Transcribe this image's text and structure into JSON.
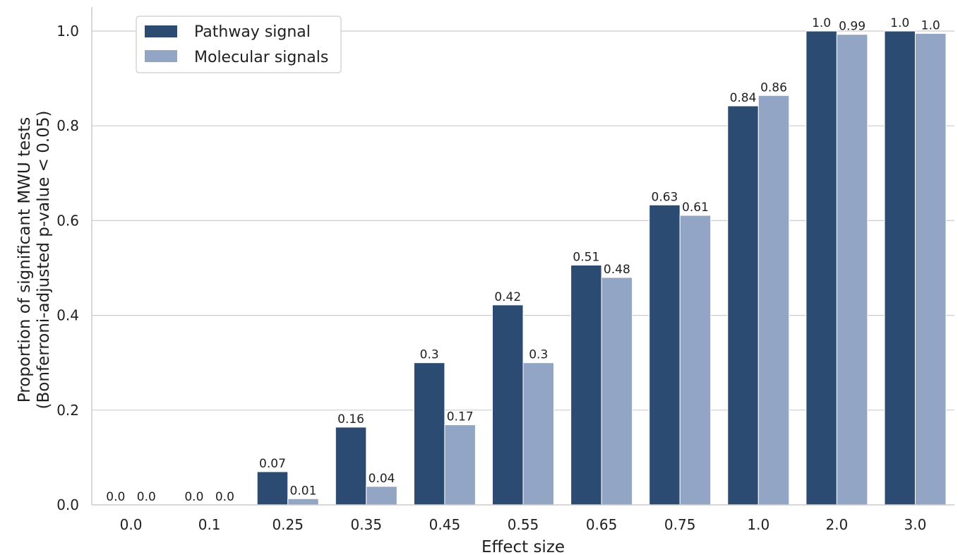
{
  "chart_data": {
    "type": "bar",
    "title": "",
    "xlabel": "Effect size",
    "ylabel_line1": "Proportion of significant MWU tests",
    "ylabel_line2": "(Bonferroni-adjusted p-value < 0.05)",
    "categories": [
      "0.0",
      "0.1",
      "0.25",
      "0.35",
      "0.45",
      "0.55",
      "0.65",
      "0.75",
      "1.0",
      "2.0",
      "3.0"
    ],
    "series": [
      {
        "name": "Pathway signal",
        "color": "#2b4b73",
        "values": [
          0.0,
          0.0,
          0.07,
          0.164,
          0.3,
          0.422,
          0.506,
          0.633,
          0.842,
          1.0,
          1.0
        ],
        "labels": [
          "0.0",
          "0.0",
          "0.07",
          "0.16",
          "0.3",
          "0.42",
          "0.51",
          "0.63",
          "0.84",
          "1.0",
          "1.0"
        ]
      },
      {
        "name": "Molecular signals",
        "color": "#93a5c4",
        "values": [
          0.0,
          0.0,
          0.013,
          0.039,
          0.169,
          0.3,
          0.48,
          0.611,
          0.864,
          0.993,
          0.995
        ],
        "labels": [
          "0.0",
          "0.0",
          "0.01",
          "0.04",
          "0.17",
          "0.3",
          "0.48",
          "0.61",
          "0.86",
          "0.99",
          "1.0"
        ]
      }
    ],
    "yticks": [
      "0.0",
      "0.2",
      "0.4",
      "0.6",
      "0.8",
      "1.0"
    ],
    "ylim": [
      0,
      1.052
    ],
    "grid": true,
    "legend_position": "top-left"
  }
}
